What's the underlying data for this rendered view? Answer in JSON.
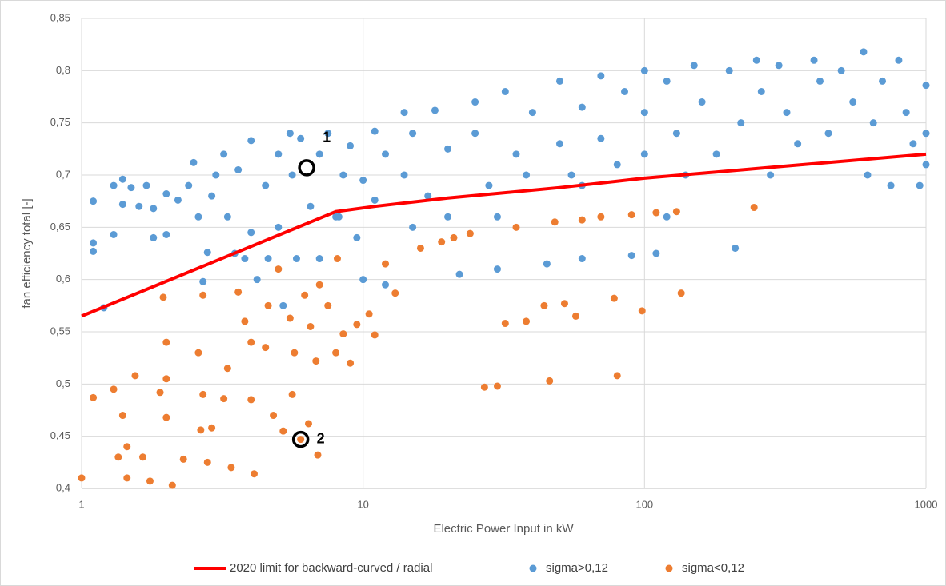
{
  "chart_data": {
    "type": "scatter",
    "x_label": "Electric Power Input in kW",
    "y_label": "fan efficiency total [-]",
    "xscale": "log",
    "grid": true,
    "legend": "bottom",
    "xlim": [
      1,
      1000
    ],
    "xticks": [
      1,
      10,
      100,
      1000
    ],
    "ylim": [
      0.4,
      0.85
    ],
    "yticks": [
      {
        "value": 0.4,
        "label": "0,4"
      },
      {
        "value": 0.45,
        "label": "0,45"
      },
      {
        "value": 0.5,
        "label": "0,5"
      },
      {
        "value": 0.55,
        "label": "0,55"
      },
      {
        "value": 0.6,
        "label": "0,6"
      },
      {
        "value": 0.65,
        "label": "0,65"
      },
      {
        "value": 0.7,
        "label": "0,7"
      },
      {
        "value": 0.75,
        "label": "0,75"
      },
      {
        "value": 0.8,
        "label": "0,8"
      },
      {
        "value": 0.85,
        "label": "0,85"
      }
    ],
    "series": [
      {
        "name": "2020 limit for backward-curved / radial",
        "color": "#ff0000",
        "mode": "line",
        "x": [
          1,
          8,
          11,
          20,
          50,
          100,
          300,
          1000
        ],
        "values": [
          0.565,
          0.665,
          0.67,
          0.678,
          0.688,
          0.697,
          0.708,
          0.72
        ]
      },
      {
        "name": "sigma>0,12",
        "color": "#5b9bd5",
        "mode": "markers",
        "x": [
          1.1,
          1.1,
          1.1,
          1.2,
          1.3,
          1.3,
          1.4,
          1.4,
          1.5,
          1.6,
          1.7,
          1.8,
          1.8,
          2,
          2,
          2.2,
          2.4,
          2.5,
          2.6,
          2.7,
          2.8,
          2.9,
          3,
          3.2,
          3.3,
          3.5,
          3.6,
          3.8,
          4,
          4,
          4.2,
          4.5,
          4.6,
          5,
          5,
          5.2,
          5.5,
          5.6,
          5.8,
          6,
          6.5,
          7,
          7,
          7.5,
          8,
          8.5,
          9,
          9.5,
          10,
          10,
          11,
          11,
          12,
          12,
          14,
          14,
          15,
          17,
          18,
          20,
          20,
          22,
          25,
          25,
          28,
          30,
          32,
          35,
          38,
          40,
          45,
          50,
          50,
          55,
          60,
          60,
          70,
          70,
          80,
          85,
          90,
          100,
          100,
          100,
          110,
          120,
          130,
          140,
          150,
          160,
          180,
          200,
          210,
          220,
          250,
          260,
          280,
          300,
          320,
          350,
          400,
          420,
          450,
          500,
          550,
          600,
          620,
          650,
          700,
          750,
          800,
          850,
          900,
          950,
          1000,
          1000,
          1000,
          120,
          60,
          30,
          15,
          8.2
        ],
        "values": [
          0.675,
          0.635,
          0.627,
          0.573,
          0.69,
          0.643,
          0.696,
          0.672,
          0.688,
          0.67,
          0.69,
          0.64,
          0.668,
          0.682,
          0.643,
          0.676,
          0.69,
          0.712,
          0.66,
          0.598,
          0.626,
          0.68,
          0.7,
          0.72,
          0.66,
          0.625,
          0.705,
          0.62,
          0.733,
          0.645,
          0.6,
          0.69,
          0.62,
          0.72,
          0.65,
          0.575,
          0.74,
          0.7,
          0.62,
          0.735,
          0.67,
          0.72,
          0.62,
          0.74,
          0.66,
          0.7,
          0.728,
          0.64,
          0.695,
          0.6,
          0.742,
          0.676,
          0.72,
          0.595,
          0.76,
          0.7,
          0.74,
          0.68,
          0.762,
          0.725,
          0.66,
          0.605,
          0.77,
          0.74,
          0.69,
          0.61,
          0.78,
          0.72,
          0.7,
          0.76,
          0.615,
          0.79,
          0.73,
          0.7,
          0.765,
          0.62,
          0.795,
          0.735,
          0.71,
          0.78,
          0.623,
          0.8,
          0.76,
          0.72,
          0.625,
          0.79,
          0.74,
          0.7,
          0.805,
          0.77,
          0.72,
          0.8,
          0.63,
          0.75,
          0.81,
          0.78,
          0.7,
          0.805,
          0.76,
          0.73,
          0.81,
          0.79,
          0.74,
          0.8,
          0.77,
          0.818,
          0.7,
          0.75,
          0.79,
          0.69,
          0.81,
          0.76,
          0.73,
          0.69,
          0.786,
          0.74,
          0.71,
          0.66,
          0.69,
          0.66,
          0.65,
          0.66
        ]
      },
      {
        "name": "sigma<0,12",
        "color": "#ed7d31",
        "mode": "markers",
        "x": [
          1,
          1.1,
          1.3,
          1.35,
          1.4,
          1.45,
          1.45,
          1.55,
          1.65,
          1.75,
          1.9,
          1.95,
          2,
          2,
          2,
          2.1,
          2.3,
          2.6,
          2.65,
          2.7,
          2.7,
          2.8,
          2.9,
          3.2,
          3.3,
          3.4,
          3.6,
          3.8,
          4,
          4,
          4.1,
          4.5,
          4.6,
          4.8,
          5,
          5.2,
          5.5,
          5.6,
          5.7,
          6,
          6.2,
          6.4,
          6.5,
          6.8,
          6.9,
          7,
          7.5,
          8,
          8.1,
          8.5,
          9,
          9.5,
          10.5,
          11,
          12,
          13,
          16,
          19,
          21,
          24,
          27,
          30,
          32,
          35,
          38,
          44,
          46,
          48,
          52,
          57,
          60,
          70,
          78,
          80,
          90,
          98,
          110,
          130,
          135,
          245
        ],
        "values": [
          0.41,
          0.487,
          0.495,
          0.43,
          0.47,
          0.41,
          0.44,
          0.508,
          0.43,
          0.407,
          0.492,
          0.583,
          0.54,
          0.505,
          0.468,
          0.403,
          0.428,
          0.53,
          0.456,
          0.49,
          0.585,
          0.425,
          0.458,
          0.486,
          0.515,
          0.42,
          0.588,
          0.56,
          0.54,
          0.485,
          0.414,
          0.535,
          0.575,
          0.47,
          0.61,
          0.455,
          0.563,
          0.49,
          0.53,
          0.447,
          0.585,
          0.462,
          0.555,
          0.522,
          0.432,
          0.595,
          0.575,
          0.53,
          0.62,
          0.548,
          0.52,
          0.557,
          0.567,
          0.547,
          0.615,
          0.587,
          0.63,
          0.636,
          0.64,
          0.644,
          0.497,
          0.498,
          0.558,
          0.65,
          0.56,
          0.575,
          0.503,
          0.655,
          0.577,
          0.565,
          0.657,
          0.66,
          0.582,
          0.508,
          0.662,
          0.57,
          0.664,
          0.665,
          0.587,
          0.669
        ]
      }
    ],
    "annotations": [
      {
        "text": "1",
        "x": 6.3,
        "y": 0.707
      },
      {
        "text": "2",
        "x": 6,
        "y": 0.447
      }
    ]
  }
}
